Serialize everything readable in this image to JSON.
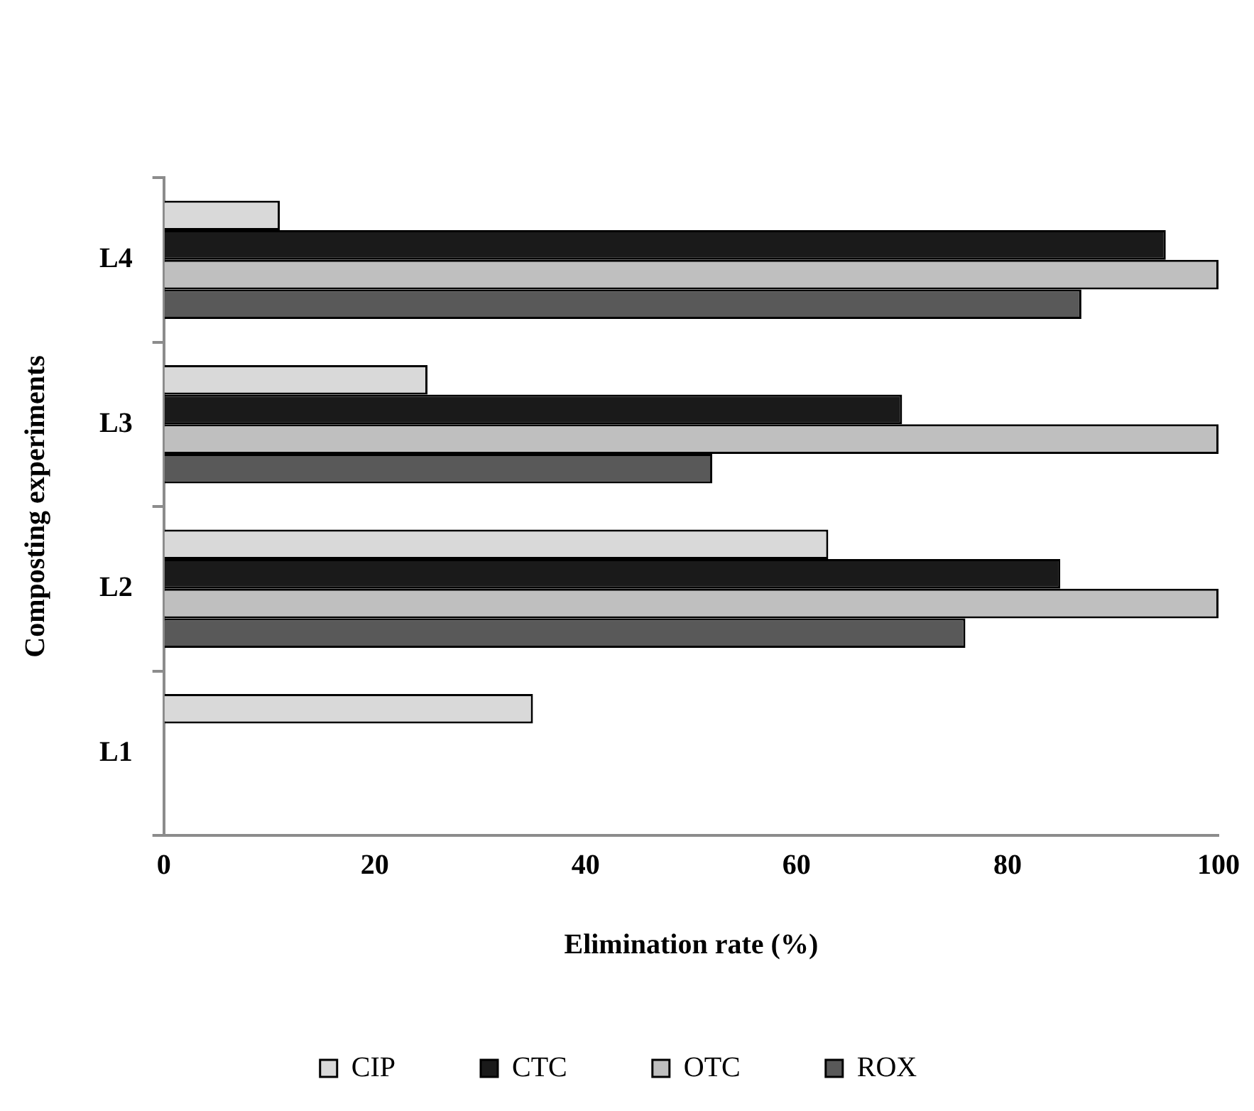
{
  "chart_data": {
    "type": "bar",
    "orientation": "horizontal",
    "xlabel": "Elimination rate (%)",
    "ylabel": "Composting experiments",
    "categories": [
      "L4",
      "L3",
      "L2",
      "L1"
    ],
    "series": [
      {
        "name": "CIP",
        "color": "#d9d9d9",
        "values": [
          11,
          25,
          63,
          35
        ]
      },
      {
        "name": "CTC",
        "color": "#1a1a1a",
        "values": [
          95,
          70,
          85,
          null
        ]
      },
      {
        "name": "OTC",
        "color": "#bfbfbf",
        "values": [
          100,
          100,
          100,
          null
        ]
      },
      {
        "name": "ROX",
        "color": "#595959",
        "values": [
          87,
          52,
          76,
          null
        ]
      }
    ],
    "xlim": [
      0,
      100
    ],
    "xticks": [
      0,
      20,
      40,
      60,
      80,
      100
    ],
    "grid": false,
    "legend": "bottom"
  }
}
